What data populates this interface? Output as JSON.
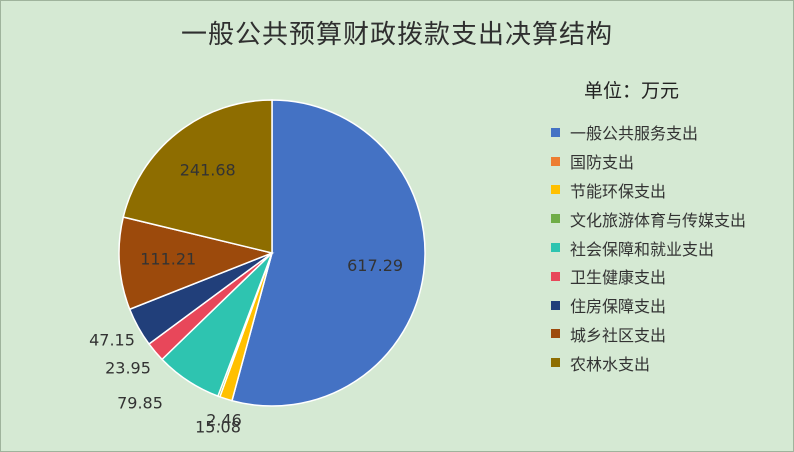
{
  "chart_data": {
    "type": "pie",
    "title": "一般公共预算财政拨款支出决算结构",
    "unit_label": "单位：万元",
    "slices": [
      {
        "label": "一般公共服务支出",
        "value": 617.29,
        "display": "617.29",
        "color": "#4472c4"
      },
      {
        "label": "国防支出",
        "value": 0,
        "display": "",
        "color": "#ed7d31"
      },
      {
        "label": "节能环保支出",
        "value": 15.08,
        "display": "15.08",
        "color": "#ffc000"
      },
      {
        "label": "文化旅游体育与传媒支出",
        "value": 2.46,
        "display": "2.46",
        "color": "#70ad47"
      },
      {
        "label": "社会保障和就业支出",
        "value": 79.85,
        "display": "79.85",
        "color": "#2ec4b0"
      },
      {
        "label": "卫生健康支出",
        "value": 23.95,
        "display": "23.95",
        "color": "#e8475a"
      },
      {
        "label": "住房保障支出",
        "value": 47.15,
        "display": "47.15",
        "color": "#213f7a"
      },
      {
        "label": "城乡社区支出",
        "value": 111.21,
        "display": "111.21",
        "color": "#9c4a0c"
      },
      {
        "label": "农林水支出",
        "value": 241.68,
        "display": "241.68",
        "color": "#8e6d00"
      }
    ],
    "legend_position": "right"
  }
}
